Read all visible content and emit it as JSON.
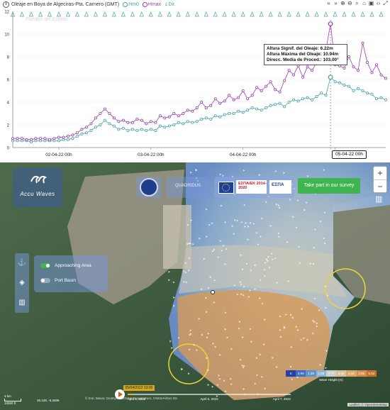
{
  "chart_panel": {
    "title": "Oleaje en Boya de Algeciras-Pta. Carnero (GMT)",
    "legend": {
      "hm0": "Hm0",
      "hmax": "Hmax",
      "dir": "Dir."
    },
    "colors": {
      "hm0": "#4aa3a3",
      "hmax": "#9a3fb0",
      "dir": "#4aa3a3"
    },
    "toolbar_icons": [
      "prev-arrow-icon",
      "next-arrow-icon",
      "zoom-in-icon",
      "zoom-out-icon",
      "search-icon",
      "home-icon",
      "lock-icon",
      "code-icon",
      "fullscreen-icon"
    ],
    "watermark": "Puertos del Estado",
    "tooltip": {
      "line1": "Altura Signif. del Oleaje: 6.22m",
      "line2": "Altura Máxima del Oleaje: 10.94m",
      "line3": "Direcc. Media de Proced.: 103.00°"
    },
    "hover_label": "05-04-22 00h"
  },
  "chart_data": {
    "type": "line",
    "x_tick_labels": [
      "02-04-22 00h",
      "03-04-22 00h",
      "04-04-22 00h",
      "05-04-22 00h"
    ],
    "ylim": [
      0,
      12
    ],
    "y_ticks": [
      0,
      2,
      4,
      6,
      8,
      10,
      12
    ],
    "grid": true,
    "hover_index": 69,
    "series": [
      {
        "name": "Hm0",
        "values": [
          0.6,
          0.6,
          0.6,
          0.6,
          0.5,
          0.6,
          0.6,
          0.6,
          0.6,
          0.6,
          0.6,
          0.7,
          0.7,
          0.8,
          1.0,
          1.2,
          1.3,
          1.5,
          1.8,
          2.0,
          2.4,
          2.1,
          1.9,
          1.6,
          1.7,
          1.5,
          1.6,
          1.5,
          1.6,
          1.5,
          1.6,
          1.5,
          1.9,
          1.8,
          1.9,
          2.0,
          2.2,
          2.1,
          2.3,
          2.2,
          2.3,
          2.5,
          2.6,
          2.5,
          2.8,
          2.7,
          2.9,
          3.0,
          3.0,
          3.2,
          3.1,
          3.3,
          3.5,
          3.4,
          3.3,
          3.5,
          3.7,
          3.8,
          3.9,
          3.6,
          4.0,
          4.2,
          4.1,
          4.3,
          4.4,
          4.2,
          4.5,
          4.8,
          4.6,
          6.2,
          5.8,
          5.7,
          5.5,
          5.4,
          5.0,
          5.2,
          5.0,
          4.8,
          4.7,
          4.3,
          4.4,
          4.2
        ],
        "color": "#4aa3a3"
      },
      {
        "name": "Hmax",
        "values": [
          0.8,
          0.8,
          0.8,
          0.7,
          0.7,
          0.8,
          0.8,
          0.8,
          0.7,
          0.8,
          0.9,
          0.9,
          1.0,
          1.1,
          1.3,
          1.6,
          1.8,
          2.1,
          2.6,
          3.0,
          3.4,
          3.0,
          2.6,
          2.3,
          2.4,
          2.2,
          2.2,
          2.5,
          2.4,
          2.1,
          2.3,
          2.2,
          2.8,
          2.6,
          2.7,
          3.0,
          2.8,
          3.0,
          3.3,
          3.2,
          3.5,
          4.0,
          3.5,
          3.7,
          4.3,
          3.9,
          4.1,
          4.6,
          4.2,
          4.4,
          5.0,
          4.3,
          4.6,
          5.3,
          5.0,
          5.4,
          5.8,
          5.1,
          4.9,
          5.9,
          6.8,
          6.4,
          7.2,
          6.2,
          7.1,
          6.8,
          7.5,
          8.0,
          8.6,
          10.9,
          7.3,
          7.2,
          7.0,
          8.0,
          7.1,
          6.8,
          9.2,
          7.5,
          6.6,
          7.3,
          6.4,
          6.1
        ],
        "color": "#9a3fb0"
      }
    ]
  },
  "map": {
    "logo_text": "Accu Waves",
    "partner_label": "QUADRIDUS",
    "eu_logo_2": "ΕΣΠΑ/ΕΚ 2014-2020",
    "eu_logo_3": "ΕΣΠΑ",
    "survey_button": "Take part in our survey",
    "zoom_in": "+",
    "zoom_out": "−",
    "left_tools_icons": [
      "anchor-icon",
      "layers-icon",
      "chart-icon"
    ],
    "layer_toggles": [
      {
        "label": "Approaching Area",
        "on": true
      },
      {
        "label": "Port Basin",
        "on": false
      }
    ],
    "color_legend": {
      "values": [
        "0",
        "0.69",
        "1.39",
        "2.08",
        "2.77",
        "3.46",
        "4.15",
        "4.85",
        "5.54"
      ],
      "colors": [
        "#2a3ea8",
        "#3f6fc4",
        "#5c93cf",
        "#8fb4d6",
        "#c9cfc9",
        "#d8c29a",
        "#d9a86a",
        "#d78f47",
        "#cf6f2b"
      ],
      "label": "Wave Height (m)"
    },
    "timeline": {
      "current_time": "05/04/2022 03:00",
      "progress": 0.03,
      "tick_labels": [
        "April 5, 2022",
        "April 6, 2022",
        "April 7, 2022"
      ]
    },
    "scale_labels": [
      "3 km",
      "10000 ft"
    ],
    "scale_coords": "36.128, -5.4006",
    "attribution": "Leaflet | © OpenStreetMap",
    "credits": "© Esri, Maxar, GeoEye, Earthstar Geographics, CNES/Airbus DS"
  }
}
